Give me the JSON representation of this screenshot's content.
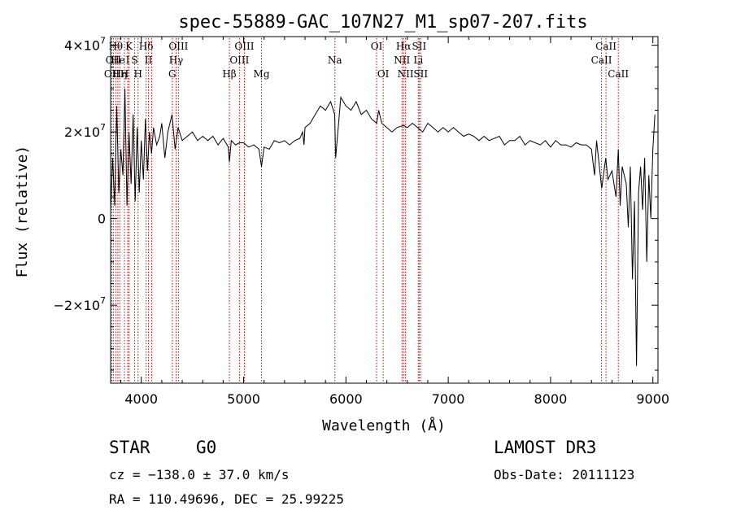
{
  "chart_data": {
    "type": "line",
    "title": "spec-55889-GAC_107N27_M1_sp07-207.fits",
    "xlabel": "Wavelength (Å)",
    "ylabel": "Flux (relative)",
    "xlim": [
      3700,
      9050
    ],
    "ylim": [
      -38000000,
      42000000
    ],
    "x_ticks": [
      {
        "value": 4000,
        "label": "4000"
      },
      {
        "value": 5000,
        "label": "5000"
      },
      {
        "value": 6000,
        "label": "6000"
      },
      {
        "value": 7000,
        "label": "7000"
      },
      {
        "value": 8000,
        "label": "8000"
      },
      {
        "value": 9000,
        "label": "9000"
      }
    ],
    "y_ticks": [
      {
        "value": -20000000,
        "mant": "−2×10",
        "exp": "7"
      },
      {
        "value": 0,
        "mant": "0",
        "exp": ""
      },
      {
        "value": 20000000,
        "mant": "2×10",
        "exp": "7"
      },
      {
        "value": 40000000,
        "mant": "4×10",
        "exp": "7"
      }
    ],
    "line_color": "#000000",
    "marker_color": "#cc0000",
    "series": [
      {
        "x": [
          3700,
          3720,
          3740,
          3760,
          3780,
          3800,
          3820,
          3840,
          3860,
          3880,
          3900,
          3920,
          3940,
          3960,
          3980,
          4000,
          4020,
          4040,
          4060,
          4080,
          4100,
          4120,
          4150,
          4180,
          4200,
          4230,
          4260,
          4300,
          4330,
          4360,
          4400,
          4450,
          4500,
          4550,
          4600,
          4650,
          4700,
          4750,
          4800,
          4850,
          4861,
          4880,
          4920,
          4960,
          5000,
          5050,
          5100,
          5150,
          5175,
          5200,
          5250,
          5300,
          5350,
          5400,
          5450,
          5500,
          5550,
          5577,
          5590,
          5600,
          5650,
          5700,
          5750,
          5800,
          5850,
          5890,
          5900,
          5950,
          6000,
          6050,
          6100,
          6150,
          6200,
          6250,
          6300,
          6320,
          6350,
          6400,
          6450,
          6500,
          6563,
          6600,
          6650,
          6700,
          6750,
          6800,
          6850,
          6900,
          6950,
          7000,
          7050,
          7100,
          7150,
          7200,
          7250,
          7300,
          7350,
          7400,
          7450,
          7500,
          7550,
          7600,
          7650,
          7700,
          7750,
          7800,
          7850,
          7900,
          7950,
          8000,
          8050,
          8100,
          8150,
          8200,
          8250,
          8300,
          8350,
          8400,
          8430,
          8450,
          8500,
          8540,
          8560,
          8600,
          8640,
          8662,
          8680,
          8700,
          8740,
          8760,
          8780,
          8800,
          8820,
          8840,
          8860,
          8880,
          8900,
          8920,
          8940,
          8960,
          8980,
          9000,
          9020
        ],
        "y": [
          2000000,
          14000000,
          3000000,
          26000000,
          6000000,
          16000000,
          10000000,
          30000000,
          3000000,
          20000000,
          8000000,
          24000000,
          4000000,
          21000000,
          6000000,
          18000000,
          9000000,
          23000000,
          11000000,
          20000000,
          15000000,
          21000000,
          17000000,
          19000000,
          22000000,
          14000000,
          20000000,
          24000000,
          16000000,
          21000000,
          18000000,
          19000000,
          20000000,
          18000000,
          19000000,
          18000000,
          19000000,
          17000000,
          18500000,
          16500000,
          13000000,
          18000000,
          17000000,
          17500000,
          17500000,
          16500000,
          17000000,
          16000000,
          12000000,
          16500000,
          16000000,
          18000000,
          17500000,
          18000000,
          17000000,
          18000000,
          18500000,
          20000000,
          17000000,
          21000000,
          22000000,
          24000000,
          26000000,
          25000000,
          27000000,
          24000000,
          14000000,
          28000000,
          26000000,
          25000000,
          27000000,
          24000000,
          25000000,
          23000000,
          22000000,
          25000000,
          22000000,
          21000000,
          20000000,
          21000000,
          21500000,
          21000000,
          22000000,
          21000000,
          20000000,
          22000000,
          21000000,
          20000000,
          21000000,
          20000000,
          21000000,
          20000000,
          19000000,
          19500000,
          19000000,
          18000000,
          19000000,
          18000000,
          18500000,
          19000000,
          17000000,
          18000000,
          18000000,
          19000000,
          17000000,
          18000000,
          17500000,
          17000000,
          18000000,
          16500000,
          18000000,
          17000000,
          17000000,
          16500000,
          17500000,
          17000000,
          17000000,
          16000000,
          10000000,
          18000000,
          7000000,
          14000000,
          9000000,
          11000000,
          5000000,
          16000000,
          3000000,
          12000000,
          8000000,
          -2000000,
          12000000,
          -14000000,
          4000000,
          -34000000,
          6000000,
          12000000,
          2000000,
          14000000,
          -10000000,
          10000000,
          0,
          16000000,
          24000000
        ]
      }
    ],
    "emission_lines": [
      {
        "lambda": 3712,
        "rows": [
          {
            "row": 3,
            "text": "OII"
          }
        ]
      },
      {
        "lambda": 3727,
        "rows": [
          {
            "row": 2,
            "text": "OII"
          }
        ]
      },
      {
        "lambda": 3750,
        "rows": [
          {
            "row": 1,
            "text": "Hθ"
          }
        ]
      },
      {
        "lambda": 3771,
        "rows": [
          {
            "row": 2,
            "text": "He"
          }
        ]
      },
      {
        "lambda": 3790,
        "rows": [
          {
            "row": 3,
            "text": "Hη"
          }
        ]
      },
      {
        "lambda": 3835,
        "rows": [
          {
            "row": 3,
            "text": "H"
          }
        ]
      },
      {
        "lambda": 3867,
        "rows": [
          {
            "row": 2,
            "text": "I"
          }
        ]
      },
      {
        "lambda": 3880,
        "rows": [
          {
            "row": 1,
            "text": "K"
          }
        ]
      },
      {
        "lambda": 3934,
        "rows": [
          {
            "row": 2,
            "text": "S"
          }
        ]
      },
      {
        "lambda": 3968,
        "rows": [
          {
            "row": 3,
            "text": "H"
          }
        ]
      },
      {
        "lambda": 4047,
        "rows": [
          {
            "row": 1,
            "text": "Hδ"
          }
        ]
      },
      {
        "lambda": 4070,
        "rows": [
          {
            "row": 2,
            "text": "II"
          }
        ]
      },
      {
        "lambda": 4102,
        "rows": []
      },
      {
        "lambda": 4303,
        "rows": [
          {
            "row": 3,
            "text": "G"
          }
        ]
      },
      {
        "lambda": 4340,
        "rows": [
          {
            "row": 2,
            "text": "Hγ"
          }
        ]
      },
      {
        "lambda": 4363,
        "rows": [
          {
            "row": 1,
            "text": "OIII"
          }
        ]
      },
      {
        "lambda": 4861,
        "rows": [
          {
            "row": 3,
            "text": "Hβ"
          }
        ]
      },
      {
        "lambda": 4959,
        "rows": [
          {
            "row": 2,
            "text": "OIII"
          }
        ]
      },
      {
        "lambda": 5007,
        "rows": [
          {
            "row": 1,
            "text": "OIII"
          }
        ]
      },
      {
        "lambda": 5175,
        "rows": [
          {
            "row": 3,
            "text": "Mg"
          }
        ]
      },
      {
        "lambda": 5892,
        "rows": [
          {
            "row": 2,
            "text": "Na"
          }
        ]
      },
      {
        "lambda": 6300,
        "rows": [
          {
            "row": 1,
            "text": "OI"
          }
        ]
      },
      {
        "lambda": 6364,
        "rows": [
          {
            "row": 3,
            "text": "OI"
          }
        ]
      },
      {
        "lambda": 6548,
        "rows": [
          {
            "row": 2,
            "text": "NII"
          }
        ]
      },
      {
        "lambda": 6563,
        "rows": [
          {
            "row": 1,
            "text": "Hα"
          }
        ]
      },
      {
        "lambda": 6583,
        "rows": [
          {
            "row": 3,
            "text": "NII"
          }
        ]
      },
      {
        "lambda": 6707,
        "rows": [
          {
            "row": 2,
            "text": "Li"
          }
        ]
      },
      {
        "lambda": 6716,
        "rows": [
          {
            "row": 1,
            "text": "SII"
          }
        ]
      },
      {
        "lambda": 6731,
        "rows": [
          {
            "row": 3,
            "text": "SII"
          }
        ]
      },
      {
        "lambda": 8498,
        "rows": [
          {
            "row": 2,
            "text": "CaII"
          }
        ]
      },
      {
        "lambda": 8542,
        "rows": [
          {
            "row": 1,
            "text": "CaII"
          }
        ]
      },
      {
        "lambda": 8662,
        "rows": [
          {
            "row": 3,
            "text": "CaII"
          }
        ]
      }
    ]
  },
  "info": {
    "object_type": "STAR",
    "subclass": "G0",
    "survey": "LAMOST DR3",
    "redshift_line": "cz = −138.0 ± 37.0 km/s",
    "obs_date_line": "Obs-Date: 20111123",
    "coords_line": "RA = 110.49696, DEC =  25.99225"
  }
}
